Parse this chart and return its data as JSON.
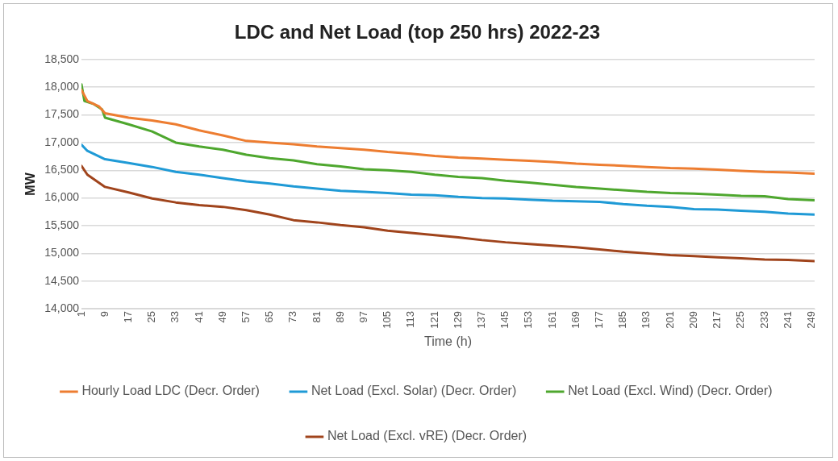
{
  "chart_data": {
    "type": "line",
    "title": "LDC and Net Load (top 250 hrs) 2022-23",
    "xlabel": "Time (h)",
    "ylabel": "MW",
    "xlim": [
      1,
      250
    ],
    "xticks": [
      1,
      9,
      17,
      25,
      33,
      41,
      49,
      57,
      65,
      73,
      81,
      89,
      97,
      105,
      113,
      121,
      129,
      137,
      145,
      153,
      161,
      169,
      177,
      185,
      193,
      201,
      209,
      217,
      225,
      233,
      241,
      249
    ],
    "ylim": [
      14000,
      18500
    ],
    "yticks": [
      {
        "value": 14000,
        "label": "14,000"
      },
      {
        "value": 14500,
        "label": "14,500"
      },
      {
        "value": 15000,
        "label": "15,000"
      },
      {
        "value": 15500,
        "label": "15,500"
      },
      {
        "value": 16000,
        "label": "16,000"
      },
      {
        "value": 16500,
        "label": "16,500"
      },
      {
        "value": 17000,
        "label": "17,000"
      },
      {
        "value": 17500,
        "label": "17,500"
      },
      {
        "value": 18000,
        "label": "18,000"
      },
      {
        "value": 18500,
        "label": "18,500"
      }
    ],
    "grid": "y",
    "legend": "bottom",
    "marker": "none",
    "line_style": "solid",
    "series": [
      {
        "name": "Hourly Load LDC (Decr. Order)",
        "color": "#ed7d31",
        "x": [
          1,
          3,
          7,
          9,
          17,
          25,
          33,
          41,
          49,
          57,
          65,
          73,
          81,
          89,
          97,
          105,
          113,
          121,
          129,
          137,
          145,
          153,
          161,
          169,
          177,
          185,
          193,
          201,
          209,
          217,
          225,
          233,
          241,
          250
        ],
        "values": [
          17950,
          17750,
          17650,
          17530,
          17450,
          17400,
          17330,
          17220,
          17130,
          17030,
          17000,
          16970,
          16930,
          16900,
          16870,
          16830,
          16800,
          16760,
          16730,
          16710,
          16690,
          16670,
          16650,
          16620,
          16600,
          16580,
          16560,
          16540,
          16530,
          16510,
          16490,
          16470,
          16460,
          16440
        ]
      },
      {
        "name": "Net Load (Excl. Solar) (Decr. Order)",
        "color": "#1f9ad6",
        "x": [
          1,
          3,
          9,
          17,
          25,
          33,
          41,
          49,
          57,
          65,
          73,
          81,
          89,
          97,
          105,
          113,
          121,
          129,
          137,
          145,
          153,
          161,
          169,
          177,
          185,
          193,
          201,
          209,
          217,
          225,
          233,
          241,
          250
        ],
        "values": [
          16960,
          16850,
          16700,
          16630,
          16560,
          16470,
          16420,
          16360,
          16300,
          16260,
          16210,
          16170,
          16130,
          16110,
          16090,
          16060,
          16050,
          16020,
          16000,
          15990,
          15970,
          15950,
          15940,
          15930,
          15890,
          15860,
          15840,
          15800,
          15790,
          15770,
          15750,
          15720,
          15700
        ]
      },
      {
        "name": "Net Load (Excl. Wind) (Decr. Order)",
        "color": "#4ea72e",
        "x": [
          1,
          2,
          5,
          8,
          9,
          17,
          25,
          33,
          41,
          49,
          57,
          65,
          73,
          81,
          89,
          97,
          105,
          113,
          121,
          129,
          137,
          145,
          153,
          161,
          169,
          177,
          185,
          193,
          201,
          209,
          217,
          225,
          233,
          241,
          250
        ],
        "values": [
          18050,
          17750,
          17700,
          17600,
          17450,
          17330,
          17200,
          17000,
          16930,
          16870,
          16780,
          16720,
          16680,
          16610,
          16570,
          16520,
          16500,
          16470,
          16420,
          16380,
          16360,
          16310,
          16280,
          16240,
          16200,
          16170,
          16140,
          16110,
          16090,
          16080,
          16060,
          16040,
          16030,
          15980,
          15960
        ]
      },
      {
        "name": "Net Load (Excl. vRE) (Decr. Order)",
        "color": "#a0441c",
        "x": [
          1,
          3,
          9,
          17,
          25,
          33,
          41,
          49,
          57,
          65,
          73,
          81,
          89,
          97,
          105,
          113,
          121,
          129,
          137,
          145,
          153,
          161,
          169,
          177,
          185,
          193,
          201,
          209,
          217,
          225,
          233,
          241,
          250
        ],
        "values": [
          16580,
          16420,
          16200,
          16100,
          15990,
          15920,
          15870,
          15840,
          15780,
          15700,
          15600,
          15560,
          15510,
          15470,
          15410,
          15370,
          15330,
          15290,
          15240,
          15200,
          15170,
          15140,
          15110,
          15070,
          15030,
          15000,
          14970,
          14950,
          14930,
          14910,
          14890,
          14880,
          14860
        ]
      }
    ]
  }
}
